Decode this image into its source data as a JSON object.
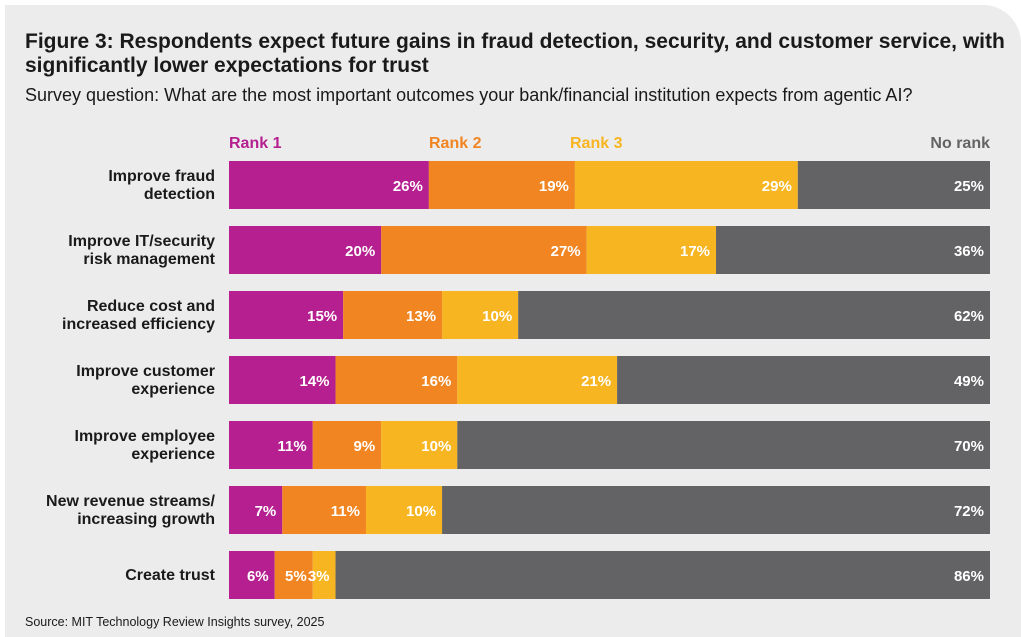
{
  "title": "Figure 3: Respondents expect future gains in fraud detection, security, and customer service, with significantly lower expectations for trust",
  "subtitle": "Survey question: What are the most important outcomes your bank/financial institution expects from agentic AI?",
  "source": "Source: MIT Technology Review Insights survey, 2025",
  "colors": {
    "rank1": "#b51f8f",
    "rank2": "#f08522",
    "rank3": "#f7b521",
    "norank": "#636264"
  },
  "chart_data": {
    "type": "bar",
    "orientation": "horizontal",
    "stacked": true,
    "title": "Figure 3: Respondents expect future gains in fraud detection, security, and customer service, with significantly lower expectations for trust",
    "categories": [
      [
        "Improve fraud",
        "detection"
      ],
      [
        "Improve IT/security",
        "risk management"
      ],
      [
        "Reduce cost and",
        "increased efficiency"
      ],
      [
        "Improve customer",
        "experience"
      ],
      [
        "Improve employee",
        "experience"
      ],
      [
        "New revenue streams/",
        "increasing growth"
      ],
      [
        "Create trust"
      ]
    ],
    "series": [
      {
        "name": "Rank 1",
        "key": "rank1",
        "values": [
          26,
          20,
          15,
          14,
          11,
          7,
          6
        ]
      },
      {
        "name": "Rank 2",
        "key": "rank2",
        "values": [
          19,
          27,
          13,
          16,
          9,
          11,
          5
        ]
      },
      {
        "name": "Rank 3",
        "key": "rank3",
        "values": [
          29,
          17,
          10,
          21,
          10,
          10,
          3
        ]
      },
      {
        "name": "No rank",
        "key": "norank",
        "values": [
          25,
          36,
          62,
          49,
          70,
          72,
          86
        ]
      }
    ],
    "value_suffix": "%",
    "legend_position": "top"
  }
}
